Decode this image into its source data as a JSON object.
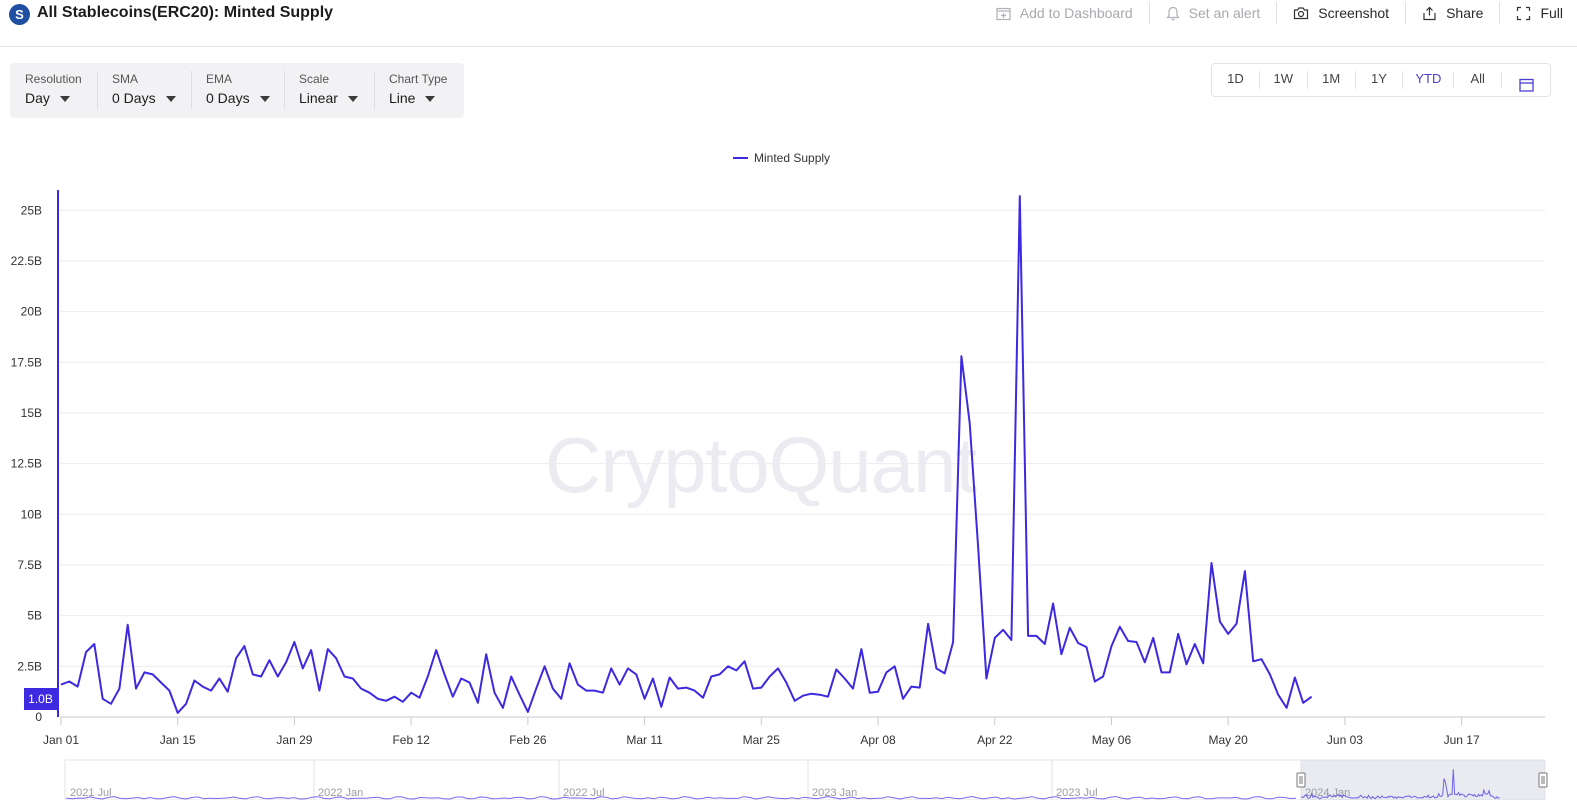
{
  "header": {
    "logo_letter": "S",
    "title": "All Stablecoins(ERC20): Minted Supply",
    "actions": [
      {
        "label": "Add to Dashboard",
        "icon": "add-dashboard-icon",
        "enabled": false
      },
      {
        "label": "Set an alert",
        "icon": "bell-icon",
        "enabled": false
      },
      {
        "label": "Screenshot",
        "icon": "camera-icon",
        "enabled": true
      },
      {
        "label": "Share",
        "icon": "share-icon",
        "enabled": true
      },
      {
        "label": "Full",
        "icon": "fullscreen-icon",
        "enabled": true
      }
    ]
  },
  "controls": [
    {
      "label": "Resolution",
      "value": "Day"
    },
    {
      "label": "SMA",
      "value": "0 Days"
    },
    {
      "label": "EMA",
      "value": "0 Days"
    },
    {
      "label": "Scale",
      "value": "Linear"
    },
    {
      "label": "Chart Type",
      "value": "Line"
    }
  ],
  "ranges": {
    "options": [
      "1D",
      "1W",
      "1M",
      "1Y",
      "YTD",
      "All"
    ],
    "active": "YTD",
    "calendar_icon": "calendar-icon"
  },
  "watermark": "CryptoQuant",
  "current_value_badge": "1.0B",
  "colors": {
    "series": "#3c29e0",
    "active_range": "#4a3ed1",
    "logo": "#1e4fa0"
  },
  "chart_data": {
    "type": "line",
    "title": "",
    "legend": "top-center",
    "grid": true,
    "xlabel": "",
    "ylabel": "",
    "x_start": "2024-01-01",
    "x_end": "2024-06-27",
    "ylim": [
      0,
      26000000000
    ],
    "y_ticks": [
      "0",
      "2.5B",
      "5B",
      "7.5B",
      "10B",
      "12.5B",
      "15B",
      "17.5B",
      "20B",
      "22.5B",
      "25B"
    ],
    "y_tick_values": [
      0,
      2500000000,
      5000000000,
      7500000000,
      10000000000,
      12500000000,
      15000000000,
      17500000000,
      20000000000,
      22500000000,
      25000000000
    ],
    "x_ticks": [
      {
        "date": "2024-01-01",
        "label": "Jan 01"
      },
      {
        "date": "2024-01-15",
        "label": "Jan 15"
      },
      {
        "date": "2024-01-29",
        "label": "Jan 29"
      },
      {
        "date": "2024-02-12",
        "label": "Feb 12"
      },
      {
        "date": "2024-02-26",
        "label": "Feb 26"
      },
      {
        "date": "2024-03-11",
        "label": "Mar 11"
      },
      {
        "date": "2024-03-25",
        "label": "Mar 25"
      },
      {
        "date": "2024-04-08",
        "label": "Apr 08"
      },
      {
        "date": "2024-04-22",
        "label": "Apr 22"
      },
      {
        "date": "2024-05-06",
        "label": "May 06"
      },
      {
        "date": "2024-05-20",
        "label": "May 20"
      },
      {
        "date": "2024-06-03",
        "label": "Jun 03"
      },
      {
        "date": "2024-06-17",
        "label": "Jun 17"
      }
    ],
    "series": [
      {
        "name": "Minted Supply",
        "start_date": "2024-01-01",
        "values": [
          1.6,
          1.75,
          1.5,
          3.2,
          3.6,
          0.9,
          0.65,
          1.4,
          4.55,
          1.4,
          2.2,
          2.1,
          1.7,
          1.3,
          0.2,
          0.65,
          1.8,
          1.5,
          1.3,
          1.9,
          1.25,
          2.9,
          3.5,
          2.1,
          2.0,
          2.8,
          2.0,
          2.7,
          3.7,
          2.4,
          3.3,
          1.3,
          3.35,
          2.9,
          2.0,
          1.9,
          1.4,
          1.2,
          0.9,
          0.8,
          1.0,
          0.75,
          1.2,
          0.95,
          2.0,
          3.3,
          2.1,
          1.0,
          1.9,
          1.7,
          0.7,
          3.1,
          1.2,
          0.45,
          2.0,
          1.1,
          0.25,
          1.4,
          2.5,
          1.4,
          0.9,
          2.65,
          1.6,
          1.3,
          1.3,
          1.2,
          2.4,
          1.6,
          2.4,
          2.1,
          0.9,
          1.9,
          0.5,
          1.95,
          1.4,
          1.45,
          1.3,
          0.95,
          2.0,
          2.1,
          2.5,
          2.3,
          2.75,
          1.4,
          1.45,
          2.0,
          2.4,
          1.7,
          0.8,
          1.05,
          1.15,
          1.1,
          1.0,
          2.35,
          1.9,
          1.4,
          3.35,
          1.2,
          1.25,
          2.2,
          2.5,
          0.9,
          1.5,
          1.45,
          4.6,
          2.4,
          2.15,
          3.7,
          17.8,
          14.5,
          8.4,
          1.9,
          3.9,
          4.3,
          3.8,
          25.7,
          4.0,
          4.0,
          3.6,
          5.6,
          3.1,
          4.4,
          3.65,
          3.45,
          1.75,
          2.0,
          3.5,
          4.45,
          3.75,
          3.7,
          2.7,
          3.9,
          2.2,
          2.2,
          4.1,
          2.6,
          3.6,
          2.65,
          7.6,
          4.7,
          4.1,
          4.6,
          7.2,
          2.75,
          2.85,
          2.1,
          1.1,
          0.45,
          1.95,
          0.7,
          1.0
        ]
      }
    ],
    "navigator": {
      "labels": [
        "2021 Jul",
        "2022 Jan",
        "2022 Jul",
        "2023 Jan",
        "2023 Jul",
        "2024 Jan"
      ],
      "selection": "2024 YTD"
    }
  }
}
